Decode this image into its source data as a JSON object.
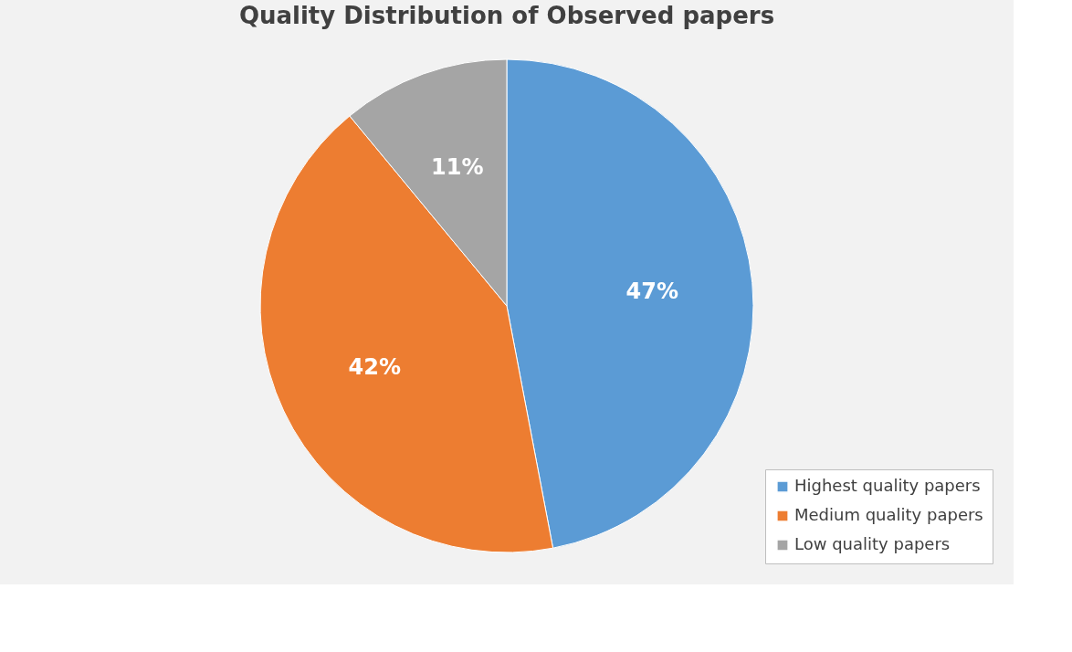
{
  "chart_data": {
    "type": "pie",
    "title": "Quality Distribution of Observed papers",
    "categories": [
      "Highest quality papers",
      "Medium quality papers",
      "Low quality papers"
    ],
    "values": [
      47,
      42,
      11
    ],
    "colors": [
      "#5b9bd5",
      "#ed7d31",
      "#a5a5a5"
    ],
    "value_labels": [
      "47%",
      "42%",
      "11%"
    ],
    "legend": "bottom right"
  }
}
